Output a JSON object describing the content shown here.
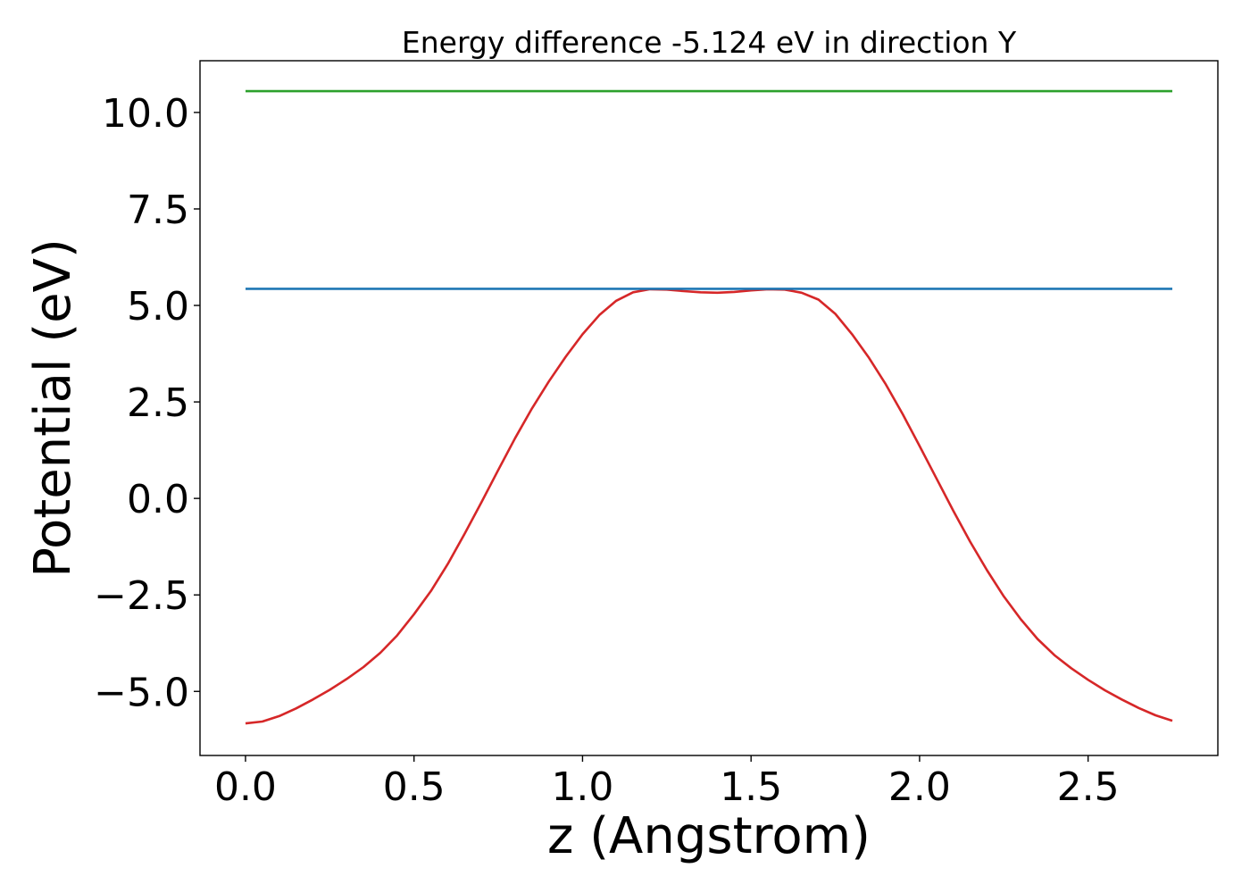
{
  "chart_data": {
    "type": "line",
    "title": "Energy difference -5.124 eV in direction Y",
    "xlabel": "z (Angstrom)",
    "ylabel": "Potential (eV)",
    "xlim": [
      -0.135,
      2.885
    ],
    "ylim": [
      -6.66,
      11.34
    ],
    "xticks": [
      0.0,
      0.5,
      1.0,
      1.5,
      2.0,
      2.5
    ],
    "xtick_labels": [
      "0.0",
      "0.5",
      "1.0",
      "1.5",
      "2.0",
      "2.5"
    ],
    "yticks": [
      -5.0,
      -2.5,
      0.0,
      2.5,
      5.0,
      7.5,
      10.0
    ],
    "ytick_labels": [
      "−5.0",
      "−2.5",
      "0.0",
      "2.5",
      "5.0",
      "7.5",
      "10.0"
    ],
    "grid": false,
    "series": [
      {
        "color": "#d62728",
        "x": [
          0.0,
          0.05,
          0.1,
          0.15,
          0.2,
          0.25,
          0.3,
          0.35,
          0.4,
          0.45,
          0.5,
          0.55,
          0.6,
          0.65,
          0.7,
          0.75,
          0.8,
          0.85,
          0.9,
          0.95,
          1.0,
          1.05,
          1.1,
          1.15,
          1.2,
          1.25,
          1.3,
          1.35,
          1.4,
          1.45,
          1.5,
          1.55,
          1.6,
          1.65,
          1.7,
          1.75,
          1.8,
          1.85,
          1.9,
          1.95,
          2.0,
          2.05,
          2.1,
          2.15,
          2.2,
          2.25,
          2.3,
          2.35,
          2.4,
          2.45,
          2.5,
          2.55,
          2.6,
          2.65,
          2.7,
          2.75
        ],
        "y": [
          -5.83,
          -5.78,
          -5.64,
          -5.44,
          -5.21,
          -4.96,
          -4.68,
          -4.37,
          -4.0,
          -3.55,
          -3.0,
          -2.4,
          -1.7,
          -0.92,
          -0.1,
          0.74,
          1.56,
          2.33,
          3.03,
          3.67,
          4.25,
          4.75,
          5.12,
          5.34,
          5.42,
          5.41,
          5.37,
          5.34,
          5.33,
          5.35,
          5.39,
          5.42,
          5.41,
          5.33,
          5.15,
          4.78,
          4.25,
          3.64,
          2.95,
          2.18,
          1.36,
          0.52,
          -0.32,
          -1.12,
          -1.86,
          -2.54,
          -3.13,
          -3.64,
          -4.06,
          -4.4,
          -4.7,
          -4.97,
          -5.21,
          -5.43,
          -5.62,
          -5.76
        ]
      },
      {
        "color": "#1f77b4",
        "x": [
          0.0,
          2.75
        ],
        "y": [
          5.43,
          5.43
        ]
      },
      {
        "color": "#2ca02c",
        "x": [
          0.0,
          2.75
        ],
        "y": [
          10.55,
          10.55
        ]
      }
    ]
  }
}
